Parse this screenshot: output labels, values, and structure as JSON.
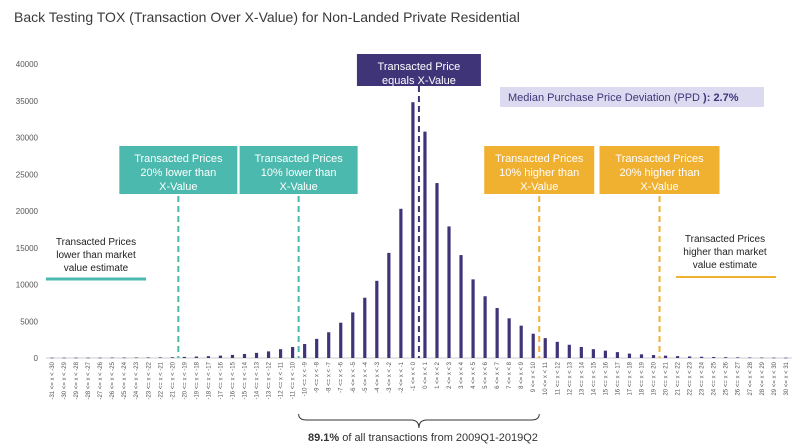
{
  "chart_data": {
    "type": "bar",
    "title": "Back Testing TOX (Transaction Over X-Value) for Non-Landed Private Residential",
    "ylim": [
      0,
      40000
    ],
    "yticks": [
      0,
      5000,
      10000,
      15000,
      20000,
      25000,
      30000,
      35000,
      40000
    ],
    "grid": false,
    "categories": [
      "-31 <= x < -30",
      "-30 <= x < -29",
      "-29 <= x < -28",
      "-28 <= x < -27",
      "-27 <= x < -26",
      "-26 <= x < -25",
      "-25 <= x < -24",
      "-24 <= x < -23",
      "-23 <= x < -22",
      "-22 <= x < -21",
      "-21 <= x < -20",
      "-20 <= x < -19",
      "-19 <= x < -18",
      "-18 <= x < -17",
      "-17 <= x < -16",
      "-16 <= x < -15",
      "-15 <= x < -14",
      "-14 <= x < -13",
      "-13 <= x < -12",
      "-12 <= x < -11",
      "-11 <= x < -10",
      "-10 <= x < -9",
      "-9 <= x < -8",
      "-8 <= x < -7",
      "-7 <= x < -6",
      "-6 <= x < -5",
      "-5 <= x < -4",
      "-4 <= x < -3",
      "-3 <= x < -2",
      "-2 <= x < -1",
      "-1 <= x < 0",
      "0 <= x < 1",
      "1 <= x < 2",
      "2 <= x < 3",
      "3 <= x < 4",
      "4 <= x < 5",
      "5 <= x < 6",
      "6 <= x < 7",
      "7 <= x < 8",
      "8 <= x < 9",
      "9 <= x < 10",
      "10 <= x < 11",
      "11 <= x < 12",
      "12 <= x < 13",
      "13 <= x < 14",
      "14 <= x < 15",
      "15 <= x < 16",
      "16 <= x < 17",
      "17 <= x < 18",
      "18 <= x < 19",
      "19 <= x < 20",
      "20 <= x < 21",
      "21 <= x < 22",
      "22 <= x < 23",
      "23 <= x < 24",
      "24 <= x < 25",
      "25 <= x < 26",
      "26 <= x < 27",
      "27 <= x < 28",
      "28 <= x < 29",
      "29 <= x < 30",
      "30 <= x < 31"
    ],
    "values": [
      40,
      40,
      50,
      50,
      50,
      60,
      60,
      70,
      80,
      90,
      110,
      150,
      200,
      250,
      320,
      420,
      550,
      700,
      900,
      1200,
      1500,
      1900,
      2600,
      3500,
      4800,
      6200,
      8200,
      10500,
      14300,
      20300,
      34800,
      30800,
      23800,
      17900,
      14000,
      10700,
      8400,
      6800,
      5400,
      4400,
      3300,
      2700,
      2200,
      1800,
      1500,
      1200,
      1000,
      800,
      600,
      500,
      400,
      320,
      260,
      210,
      170,
      140,
      110,
      90,
      70,
      60,
      50,
      40
    ],
    "bar_color": "#3f3478",
    "annotations": {
      "center": {
        "text_lines": [
          "Transacted Price",
          "equals X-Value"
        ],
        "at": "0",
        "color": "#3f3478"
      },
      "lower20": {
        "text_lines": [
          "Transacted Prices",
          "20% lower than",
          "X-Value"
        ],
        "at": "-20",
        "color": "#4bb9ad"
      },
      "lower10": {
        "text_lines": [
          "Transacted Prices",
          "10% lower than",
          "X-Value"
        ],
        "at": "-10",
        "color": "#4bb9ad"
      },
      "higher10": {
        "text_lines": [
          "Transacted Prices",
          "10% higher than",
          "X-Value"
        ],
        "at": "10",
        "color": "#f0b030"
      },
      "higher20": {
        "text_lines": [
          "Transacted Prices",
          "20% higher than",
          "X-Value"
        ],
        "at": "20",
        "color": "#f0b030"
      },
      "below": {
        "text_lines": [
          "Transacted Prices",
          "lower than market",
          "value estimate"
        ],
        "color": "#4bb9ad"
      },
      "above": {
        "text_lines": [
          "Transacted Prices",
          "higher than market",
          "value estimate"
        ],
        "color": "#f0b030"
      },
      "ppd": {
        "label": "Median Purchase Price Deviation (PPD",
        "suffix": "):",
        "value": "2.7%",
        "bg": "#dcdaf0"
      },
      "bottom": {
        "bold": "89.1%",
        "rest": " of all transactions from 2009Q1-2019Q2"
      }
    }
  }
}
